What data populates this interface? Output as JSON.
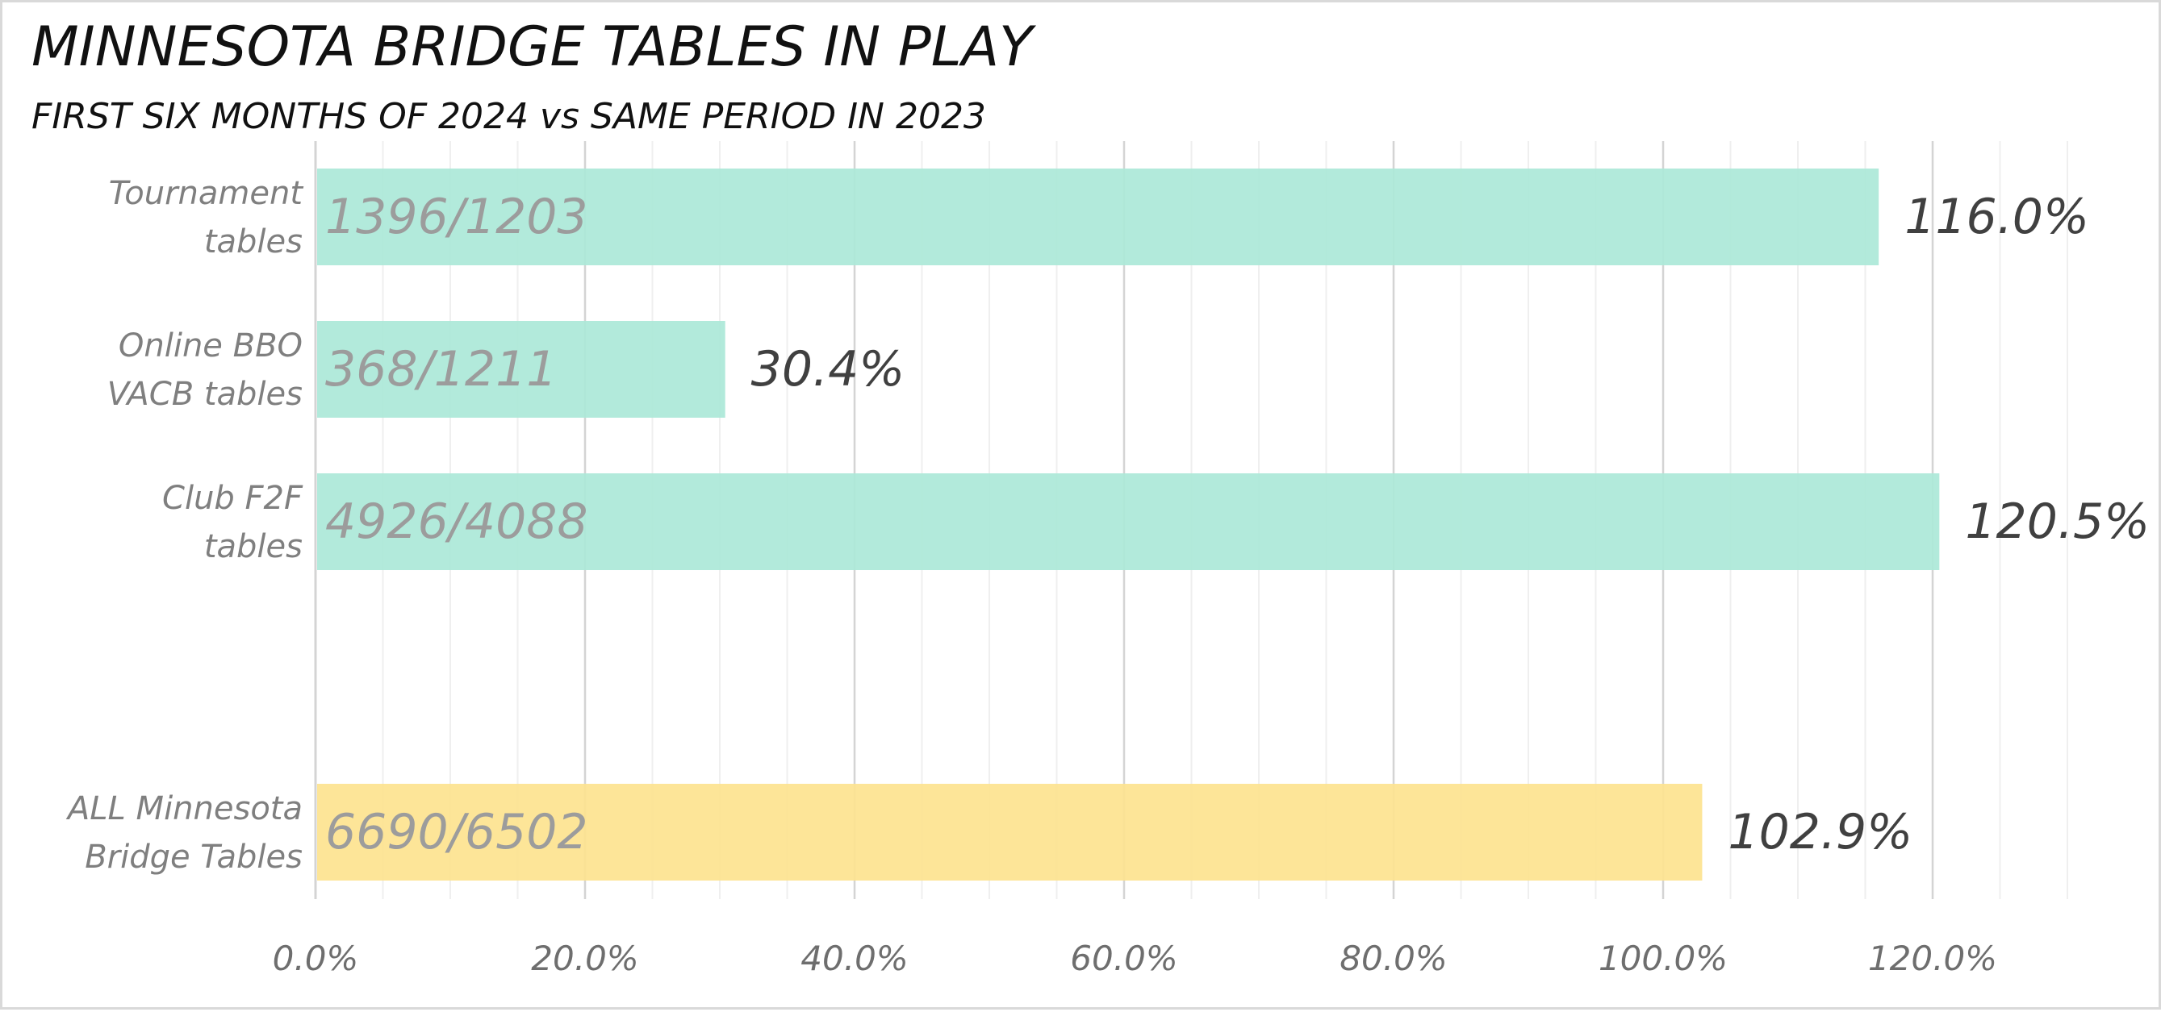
{
  "chart_data": {
    "type": "bar",
    "orientation": "horizontal",
    "title": "MINNESOTA BRIDGE TABLES IN PLAY",
    "subtitle": "FIRST SIX MONTHS OF 2024 vs SAME PERIOD IN 2023",
    "categories": [
      [
        "Tournament",
        "tables"
      ],
      [
        "Online BBO",
        "VACB tables"
      ],
      [
        "Club F2F",
        "tables"
      ],
      [
        "",
        ""
      ],
      [
        "ALL Minnesota",
        "Bridge Tables"
      ]
    ],
    "values": [
      116.0,
      30.4,
      120.5,
      null,
      102.9
    ],
    "value_labels": [
      "116.0%",
      "30.4%",
      "120.5%",
      "",
      "102.9%"
    ],
    "inbar_labels": [
      "1396/1203",
      "368/1211",
      "4926/4088",
      "",
      "6690/6502"
    ],
    "bar_colors": [
      "#abe8d8",
      "#abe8d8",
      "#abe8d8",
      "#abe8d8",
      "#fde38f"
    ],
    "xlim": [
      0,
      130
    ],
    "major_ticks": [
      0,
      20,
      40,
      60,
      80,
      100,
      120
    ],
    "tick_labels": [
      "0.0%",
      "20.0%",
      "40.0%",
      "60.0%",
      "80.0%",
      "100.0%",
      "120.0%"
    ],
    "minor_tick_step": 5,
    "grid": true,
    "legend": "none",
    "colors": {
      "major_grid": "#d4d4d4",
      "minor_grid": "#efefef",
      "border": "#d9d9d9"
    }
  }
}
